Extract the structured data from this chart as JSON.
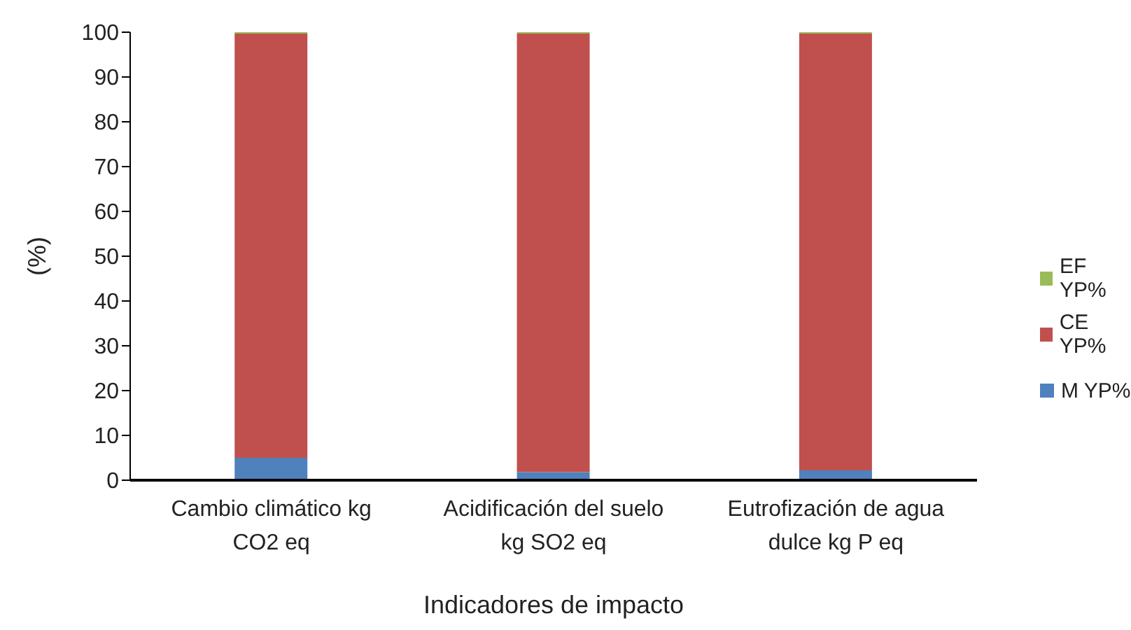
{
  "chart_data": {
    "type": "bar",
    "stacked": true,
    "xlabel": "Indicadores de impacto",
    "ylabel": "(%)",
    "categories": [
      "Cambio climático kg CO2 eq",
      "Acidificación del suelo kg SO2 eq",
      "Eutrofización de agua dulce kg P eq"
    ],
    "series": [
      {
        "name": "M YP%",
        "color": "#4f81bd",
        "values": [
          5,
          1.8,
          2.2
        ]
      },
      {
        "name": "CE YP%",
        "color": "#c0504d",
        "values": [
          94.7,
          97.9,
          97.5
        ]
      },
      {
        "name": "EF YP%",
        "color": "#9bbb59",
        "values": [
          0.3,
          0.3,
          0.3
        ]
      }
    ],
    "ylim": [
      0,
      100
    ],
    "yticks": [
      0,
      10,
      20,
      30,
      40,
      50,
      60,
      70,
      80,
      90,
      100
    ],
    "grid": false,
    "legend": "right"
  }
}
